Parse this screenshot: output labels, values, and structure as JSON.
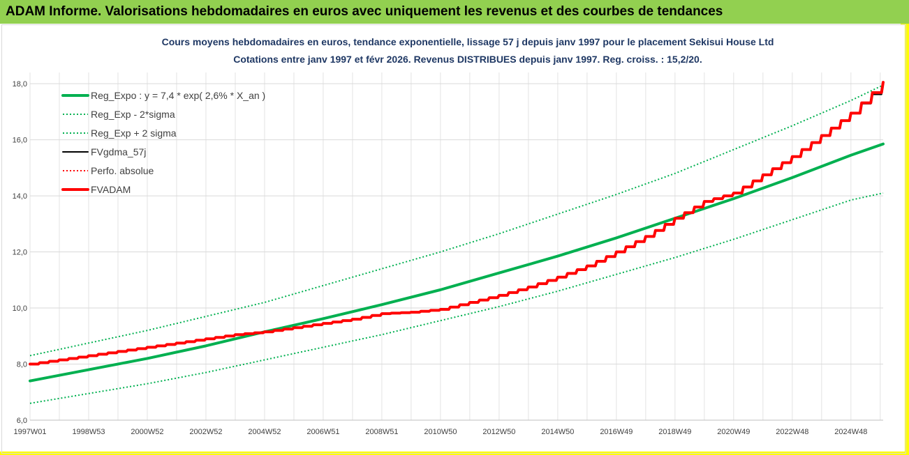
{
  "header": {
    "title": "ADAM Informe. Valorisations hebdomadaires en euros avec uniquement les revenus et des courbes de tendances"
  },
  "colors": {
    "banner": "#92d050",
    "corner": "#ffff00",
    "title_text": "#1f3864",
    "reg_green": "#00b050",
    "fv_black": "#000000",
    "fv_red": "#ff0000"
  },
  "chart_data": {
    "type": "line",
    "title": "Cours moyens hebdomadaires en euros, tendance exponentielle, lissage 57 j depuis janv 1997 pour le placement Sekisui House Ltd",
    "subtitle": "Cotations entre janv 1997 et févr 2026. Revenus DISTRIBUES depuis janv 1997. Reg.  croiss. : 15,2/20.",
    "xlabel": "",
    "ylabel": "",
    "ylim": [
      6,
      18.4
    ],
    "yticks": [
      "6,0",
      "8,0",
      "10,0",
      "12,0",
      "14,0",
      "16,0",
      "18,0"
    ],
    "x_range_years": [
      1997.0,
      2026.1
    ],
    "x_tick_labels": [
      "1997W01",
      "1998W53",
      "2000W52",
      "2002W52",
      "2004W52",
      "2006W51",
      "2008W51",
      "2010W50",
      "2012W50",
      "2014W50",
      "2016W49",
      "2018W49",
      "2020W49",
      "2022W48",
      "2024W48"
    ],
    "x_tick_years": [
      1997.0,
      1999.0,
      2001.0,
      2003.0,
      2005.0,
      2007.0,
      2009.0,
      2011.0,
      2013.0,
      2015.0,
      2017.0,
      2019.0,
      2021.0,
      2023.0,
      2025.0
    ],
    "grid": true,
    "legend_position": "top-left",
    "series": [
      {
        "name": "Reg_Expo : y = 7,4 * exp( 2,6% *  X_an )",
        "style": "solid-thick",
        "color": "#00b050",
        "x": [
          1997,
          1999,
          2001,
          2003,
          2005,
          2007,
          2009,
          2011,
          2013,
          2015,
          2017,
          2019,
          2021,
          2023,
          2025,
          2026.1
        ],
        "values": [
          7.4,
          7.8,
          8.2,
          8.65,
          9.15,
          9.62,
          10.12,
          10.65,
          11.25,
          11.85,
          12.5,
          13.2,
          13.9,
          14.65,
          15.45,
          15.85
        ]
      },
      {
        "name": "Reg_Exp - 2*sigma",
        "style": "dotted",
        "color": "#00b050",
        "x": [
          1997,
          1999,
          2001,
          2003,
          2005,
          2007,
          2009,
          2011,
          2013,
          2015,
          2017,
          2019,
          2021,
          2023,
          2025,
          2026.1
        ],
        "values": [
          6.6,
          6.95,
          7.3,
          7.7,
          8.15,
          8.6,
          9.05,
          9.55,
          10.05,
          10.6,
          11.2,
          11.8,
          12.45,
          13.15,
          13.85,
          14.1
        ]
      },
      {
        "name": "Reg_Exp + 2 sigma",
        "style": "dotted",
        "color": "#00b050",
        "x": [
          1997,
          1999,
          2001,
          2003,
          2005,
          2007,
          2009,
          2011,
          2013,
          2015,
          2017,
          2019,
          2021,
          2023,
          2025,
          2026.1
        ],
        "values": [
          8.3,
          8.75,
          9.2,
          9.7,
          10.2,
          10.8,
          11.4,
          12.0,
          12.65,
          13.35,
          14.05,
          14.8,
          15.65,
          16.5,
          17.4,
          17.95
        ]
      },
      {
        "name": "FVgdma_57j",
        "style": "solid-thin",
        "color": "#000000",
        "x": [
          1997,
          1998,
          1999,
          2000,
          2001,
          2002,
          2003,
          2004,
          2005,
          2006,
          2007,
          2008,
          2009,
          2010,
          2011,
          2012,
          2013,
          2014,
          2015,
          2016,
          2017,
          2018,
          2019,
          2020,
          2021,
          2022,
          2023,
          2024,
          2025,
          2026.1
        ],
        "values": [
          8.0,
          8.15,
          8.3,
          8.45,
          8.6,
          8.75,
          8.9,
          9.05,
          9.15,
          9.3,
          9.45,
          9.6,
          9.8,
          9.85,
          9.95,
          10.2,
          10.45,
          10.75,
          11.1,
          11.5,
          12.0,
          12.55,
          13.2,
          13.8,
          14.1,
          14.75,
          15.4,
          16.15,
          16.95,
          17.95
        ]
      },
      {
        "name": "Perfo. absolue",
        "style": "dotted",
        "color": "#ff0000",
        "x": [],
        "values": []
      },
      {
        "name": "FVADAM",
        "style": "solid-thick",
        "color": "#ff0000",
        "x": [
          1997,
          1998,
          1999,
          2000,
          2001,
          2002,
          2003,
          2004,
          2005,
          2006,
          2007,
          2008,
          2009,
          2010,
          2011,
          2012,
          2013,
          2014,
          2015,
          2016,
          2017,
          2018,
          2019,
          2020,
          2021,
          2022,
          2023,
          2024,
          2025,
          2026.1
        ],
        "values": [
          8.0,
          8.15,
          8.3,
          8.45,
          8.6,
          8.75,
          8.9,
          9.05,
          9.15,
          9.3,
          9.45,
          9.6,
          9.8,
          9.85,
          9.95,
          10.2,
          10.45,
          10.75,
          11.1,
          11.5,
          12.0,
          12.55,
          13.2,
          13.8,
          14.1,
          14.75,
          15.4,
          16.15,
          16.95,
          18.05
        ]
      }
    ]
  }
}
